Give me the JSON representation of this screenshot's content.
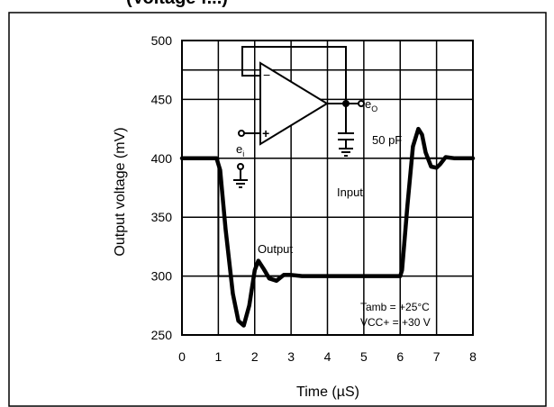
{
  "header": {
    "title_fragment": "(Voltage f...)"
  },
  "chart_data": {
    "type": "line",
    "xlabel": "Time (µS)",
    "ylabel": "Output voltage (mV)",
    "xlim": [
      0,
      8
    ],
    "ylim": [
      250,
      500
    ],
    "x_ticks": [
      "0",
      "1",
      "2",
      "3",
      "4",
      "5",
      "6",
      "7",
      "8"
    ],
    "y_ticks": [
      "250",
      "300",
      "350",
      "400",
      "450",
      "500"
    ],
    "grid": true,
    "series": [
      {
        "name": "Input",
        "points": [
          [
            0,
            400
          ],
          [
            1,
            400
          ],
          [
            1,
            300
          ],
          [
            6,
            300
          ],
          [
            6,
            400
          ],
          [
            8,
            400
          ]
        ]
      },
      {
        "name": "Output",
        "points": [
          [
            0,
            400
          ],
          [
            0.95,
            400
          ],
          [
            1.05,
            390
          ],
          [
            1.2,
            340
          ],
          [
            1.4,
            285
          ],
          [
            1.55,
            262
          ],
          [
            1.7,
            258
          ],
          [
            1.85,
            275
          ],
          [
            2.0,
            305
          ],
          [
            2.1,
            313
          ],
          [
            2.25,
            306
          ],
          [
            2.4,
            298
          ],
          [
            2.6,
            296
          ],
          [
            2.8,
            301
          ],
          [
            3.0,
            301
          ],
          [
            3.3,
            300
          ],
          [
            6.0,
            300
          ],
          [
            6.05,
            305
          ],
          [
            6.2,
            360
          ],
          [
            6.35,
            410
          ],
          [
            6.5,
            425
          ],
          [
            6.6,
            420
          ],
          [
            6.7,
            405
          ],
          [
            6.85,
            393
          ],
          [
            7.0,
            392
          ],
          [
            7.1,
            395
          ],
          [
            7.25,
            401
          ],
          [
            7.5,
            400
          ],
          [
            8.0,
            400
          ]
        ]
      }
    ],
    "annotations": {
      "input_label": "Input",
      "output_label": "Output",
      "tamb": "Tamb = +25°C",
      "vcc": "VCC+ = +30 V",
      "eo_main": "e",
      "eo_sub": "O",
      "ei_main": "e",
      "ei_sub": "i",
      "cap": "50 pF"
    }
  }
}
